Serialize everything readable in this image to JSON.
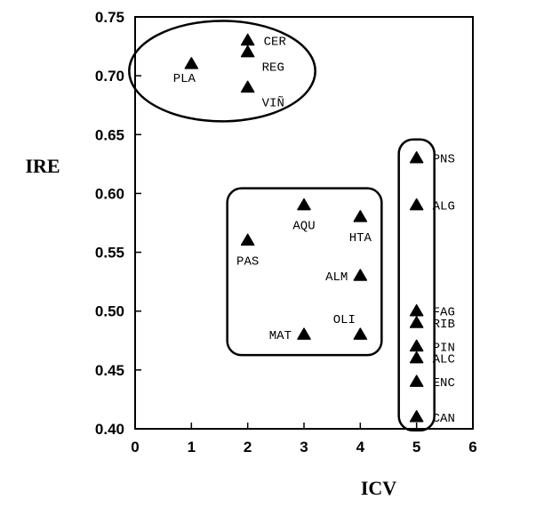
{
  "chart_data": {
    "type": "scatter",
    "title": "",
    "xlabel": "ICV",
    "ylabel": "IRE",
    "xlim": [
      0,
      6
    ],
    "ylim": [
      0.4,
      0.75
    ],
    "x_ticks": [
      "0",
      "1",
      "2",
      "3",
      "4",
      "5",
      "6"
    ],
    "y_ticks": [
      "0.40",
      "0.45",
      "0.50",
      "0.55",
      "0.60",
      "0.65",
      "0.70",
      "0.75"
    ],
    "grid": false,
    "marker": "triangle",
    "points": [
      {
        "label": "PLA",
        "x": 1,
        "y": 0.71,
        "label_pos": "below-left"
      },
      {
        "label": "CER",
        "x": 2,
        "y": 0.73,
        "label_pos": "right"
      },
      {
        "label": "REG",
        "x": 2,
        "y": 0.72,
        "label_pos": "below-right"
      },
      {
        "label": "VIÑ",
        "x": 2,
        "y": 0.69,
        "label_pos": "below-right"
      },
      {
        "label": "PAS",
        "x": 2,
        "y": 0.56,
        "label_pos": "below"
      },
      {
        "label": "AQU",
        "x": 3,
        "y": 0.59,
        "label_pos": "below"
      },
      {
        "label": "MAT",
        "x": 3,
        "y": 0.48,
        "label_pos": "left"
      },
      {
        "label": "HTA",
        "x": 4,
        "y": 0.58,
        "label_pos": "below"
      },
      {
        "label": "ALM",
        "x": 4,
        "y": 0.53,
        "label_pos": "left"
      },
      {
        "label": "OLI",
        "x": 4,
        "y": 0.48,
        "label_pos": "above-left"
      },
      {
        "label": "PNS",
        "x": 5,
        "y": 0.63,
        "label_pos": "right"
      },
      {
        "label": "ALG",
        "x": 5,
        "y": 0.59,
        "label_pos": "right"
      },
      {
        "label": "FAG",
        "x": 5,
        "y": 0.5,
        "label_pos": "right"
      },
      {
        "label": "RIB",
        "x": 5,
        "y": 0.49,
        "label_pos": "right"
      },
      {
        "label": "PIN",
        "x": 5,
        "y": 0.47,
        "label_pos": "right"
      },
      {
        "label": "ALC",
        "x": 5,
        "y": 0.46,
        "label_pos": "right"
      },
      {
        "label": "ENC",
        "x": 5,
        "y": 0.44,
        "label_pos": "right"
      },
      {
        "label": "CAN",
        "x": 5,
        "y": 0.41,
        "label_pos": "right"
      }
    ],
    "groups": [
      {
        "shape": "ellipse",
        "members": [
          "PLA",
          "CER",
          "REG",
          "VIÑ"
        ]
      },
      {
        "shape": "rounded-rect",
        "members": [
          "PAS",
          "AQU",
          "MAT",
          "HTA",
          "ALM",
          "OLI"
        ]
      },
      {
        "shape": "rounded-rect",
        "members": [
          "PNS",
          "ALG",
          "FAG",
          "RIB",
          "PIN",
          "ALC",
          "ENC",
          "CAN"
        ]
      }
    ]
  }
}
